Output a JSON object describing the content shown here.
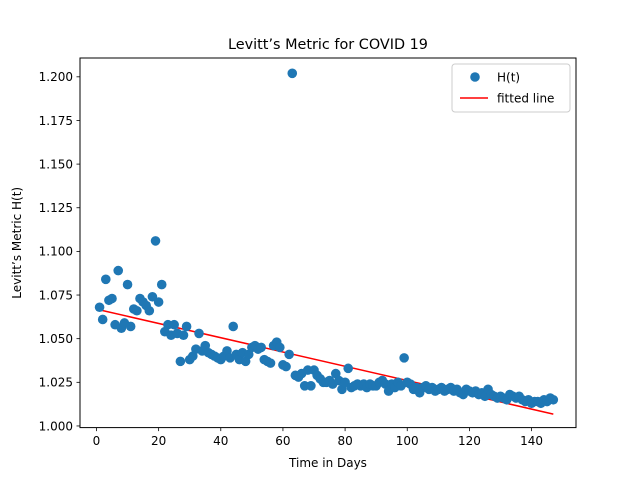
{
  "chart_data": {
    "type": "scatter",
    "title": "Levitt’s Metric for COVID 19",
    "xlabel": "Time in Days",
    "ylabel": "Levitt’s Metric H(t)",
    "xlim": [
      -5.3,
      154.3
    ],
    "ylim": [
      0.99906,
      1.21078
    ],
    "xticks": [
      0,
      20,
      40,
      60,
      80,
      100,
      120,
      140
    ],
    "xtick_labels": [
      "0",
      "20",
      "40",
      "60",
      "80",
      "100",
      "120",
      "140"
    ],
    "yticks": [
      1.0,
      1.025,
      1.05,
      1.075,
      1.1,
      1.125,
      1.15,
      1.175,
      1.2
    ],
    "ytick_labels": [
      "1.000",
      "1.025",
      "1.050",
      "1.075",
      "1.100",
      "1.125",
      "1.150",
      "1.175",
      "1.200"
    ],
    "grid": false,
    "legend_position": "top-right",
    "colors": {
      "points": "#1f77b4",
      "line": "#ff0000"
    },
    "series": [
      {
        "name": "H(t)",
        "kind": "scatter",
        "x": [
          1,
          2,
          3,
          4,
          5,
          6,
          7,
          8,
          9,
          10,
          11,
          12,
          13,
          14,
          15,
          16,
          17,
          18,
          19,
          20,
          21,
          22,
          23,
          24,
          25,
          26,
          27,
          28,
          29,
          30,
          31,
          32,
          33,
          34,
          35,
          36,
          37,
          38,
          39,
          40,
          41,
          42,
          43,
          44,
          45,
          46,
          47,
          48,
          49,
          50,
          51,
          52,
          53,
          54,
          55,
          56,
          57,
          58,
          59,
          60,
          61,
          62,
          63,
          64,
          65,
          66,
          67,
          68,
          69,
          70,
          71,
          72,
          73,
          74,
          75,
          76,
          77,
          78,
          79,
          80,
          81,
          82,
          83,
          84,
          85,
          86,
          87,
          88,
          89,
          90,
          91,
          92,
          93,
          94,
          95,
          96,
          97,
          98,
          99,
          100,
          101,
          102,
          103,
          104,
          105,
          106,
          107,
          108,
          109,
          110,
          111,
          112,
          113,
          114,
          115,
          116,
          117,
          118,
          119,
          120,
          121,
          122,
          123,
          124,
          125,
          126,
          127,
          128,
          129,
          130,
          131,
          132,
          133,
          134,
          135,
          136,
          137,
          138,
          139,
          140,
          141,
          142,
          143,
          144,
          145,
          146,
          147
        ],
        "y": [
          1.068,
          1.061,
          1.084,
          1.072,
          1.073,
          1.058,
          1.089,
          1.056,
          1.059,
          1.081,
          1.057,
          1.067,
          1.066,
          1.073,
          1.071,
          1.069,
          1.066,
          1.074,
          1.106,
          1.071,
          1.081,
          1.054,
          1.058,
          1.052,
          1.058,
          1.053,
          1.037,
          1.052,
          1.057,
          1.038,
          1.04,
          1.044,
          1.053,
          1.043,
          1.046,
          1.042,
          1.041,
          1.04,
          1.039,
          1.038,
          1.04,
          1.043,
          1.039,
          1.057,
          1.041,
          1.038,
          1.042,
          1.037,
          1.041,
          1.045,
          1.046,
          1.044,
          1.045,
          1.038,
          1.037,
          1.036,
          1.046,
          1.048,
          1.045,
          1.035,
          1.034,
          1.041,
          1.202,
          1.029,
          1.028,
          1.03,
          1.023,
          1.032,
          1.023,
          1.032,
          1.029,
          1.027,
          1.025,
          1.025,
          1.026,
          1.024,
          1.03,
          1.026,
          1.021,
          1.025,
          1.033,
          1.022,
          1.023,
          1.024,
          1.023,
          1.024,
          1.022,
          1.024,
          1.023,
          1.023,
          1.025,
          1.026,
          1.024,
          1.02,
          1.024,
          1.022,
          1.025,
          1.023,
          1.039,
          1.025,
          1.024,
          1.021,
          1.022,
          1.019,
          1.022,
          1.023,
          1.021,
          1.022,
          1.02,
          1.021,
          1.022,
          1.02,
          1.021,
          1.022,
          1.02,
          1.021,
          1.019,
          1.018,
          1.021,
          1.02,
          1.019,
          1.02,
          1.018,
          1.019,
          1.017,
          1.021,
          1.018,
          1.017,
          1.016,
          1.017,
          1.016,
          1.015,
          1.018,
          1.017,
          1.016,
          1.017,
          1.015,
          1.014,
          1.015,
          1.013,
          1.014,
          1.014,
          1.013,
          1.015,
          1.014,
          1.016,
          1.015
        ]
      },
      {
        "name": "fitted line",
        "kind": "line",
        "x": [
          1,
          147
        ],
        "y": [
          1.0665,
          1.0068
        ]
      }
    ]
  }
}
